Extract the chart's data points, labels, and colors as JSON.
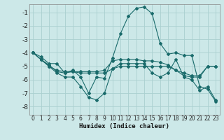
{
  "xlabel": "Humidex (Indice chaleur)",
  "bg_color": "#cce8e8",
  "grid_color": "#aad0d0",
  "line_color": "#1a6b6b",
  "xlim": [
    -0.5,
    23.5
  ],
  "ylim": [
    -8.6,
    -0.4
  ],
  "xticks": [
    0,
    1,
    2,
    3,
    4,
    5,
    6,
    7,
    8,
    9,
    10,
    11,
    12,
    13,
    14,
    15,
    16,
    17,
    18,
    19,
    20,
    21,
    22,
    23
  ],
  "yticks": [
    -8,
    -7,
    -6,
    -5,
    -4,
    -3,
    -2,
    -1
  ],
  "series": [
    [
      -4.0,
      -4.3,
      -4.8,
      -4.8,
      -5.5,
      -5.3,
      -5.8,
      -7.0,
      -5.8,
      -5.9,
      -4.4,
      -2.6,
      -1.3,
      -0.7,
      -0.6,
      -1.1,
      -3.3,
      -4.1,
      -4.0,
      -4.2,
      -4.2,
      -6.5,
      -6.7,
      -7.6
    ],
    [
      -4.0,
      -4.5,
      -4.9,
      -5.4,
      -5.5,
      -5.4,
      -5.4,
      -5.4,
      -5.4,
      -5.3,
      -4.6,
      -4.5,
      -4.5,
      -4.5,
      -4.6,
      -4.6,
      -4.7,
      -4.9,
      -5.3,
      -5.7,
      -5.8,
      -5.8,
      -5.0,
      -5.0
    ],
    [
      -4.0,
      -4.5,
      -5.0,
      -5.3,
      -5.4,
      -5.4,
      -5.5,
      -5.5,
      -5.5,
      -5.5,
      -5.2,
      -5.0,
      -5.0,
      -5.0,
      -5.0,
      -5.0,
      -5.0,
      -5.0,
      -5.3,
      -5.5,
      -5.7,
      -5.7,
      -5.0,
      -5.0
    ],
    [
      -4.0,
      -4.5,
      -5.0,
      -5.5,
      -5.8,
      -5.8,
      -6.5,
      -7.3,
      -7.5,
      -7.0,
      -5.2,
      -4.8,
      -4.8,
      -4.8,
      -4.8,
      -5.5,
      -5.8,
      -5.5,
      -4.5,
      -5.8,
      -6.0,
      -6.8,
      -6.5,
      -7.5
    ]
  ]
}
